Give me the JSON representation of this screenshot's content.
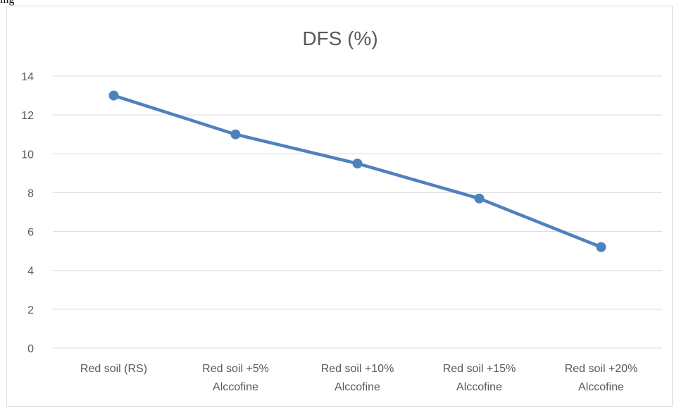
{
  "page": {
    "top_text": "ing"
  },
  "chart_data": {
    "type": "line",
    "title": "DFS (%)",
    "xlabel": "",
    "ylabel": "",
    "categories": [
      [
        "Red soil (RS)"
      ],
      [
        "Red soil  +5%",
        "Alccofine"
      ],
      [
        "Red soil  +10%",
        "Alccofine"
      ],
      [
        "Red soil +15%",
        "Alccofine"
      ],
      [
        "Red soil +20%",
        "Alccofine"
      ]
    ],
    "series": [
      {
        "values": [
          13,
          11,
          9.5,
          7.7,
          5.2
        ],
        "color": "#4f81bd"
      }
    ],
    "ylim": [
      0,
      14
    ],
    "yticks": [
      0,
      2,
      4,
      6,
      8,
      10,
      12,
      14
    ],
    "grid": true,
    "gridline_color": "#d9d9d9",
    "legend": "none"
  }
}
